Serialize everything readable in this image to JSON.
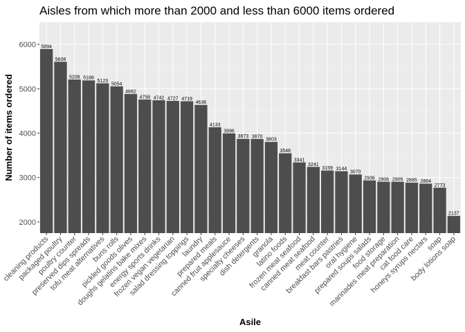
{
  "chart_data": {
    "type": "bar",
    "title": "Aisles from which more than 2000 and less than 6000 items ordered",
    "xlabel": "Asile",
    "ylabel": "Number of items ordered",
    "ylim": [
      1750,
      6500
    ],
    "yticks": [
      2000,
      3000,
      4000,
      5000,
      6000
    ],
    "grid": true,
    "bar_color": "#4d4d4d",
    "panel_color": "#ebebeb",
    "categories": [
      "cleaning products",
      "packaged poultry",
      "poultry counter",
      "preserved dips spreads",
      "tofu meat alternatives",
      "buns rolls",
      "pickled goods olives",
      "doughs gelatins bake mixes",
      "energy sports drinks",
      "frozen vegan vegetarian",
      "salad dressing toppings",
      "laundry",
      "prepared meals",
      "canned fruit applesauce",
      "specialty cheeses",
      "dish detergents",
      "granola",
      "latino foods",
      "frozen meat seafood",
      "canned meat seafood",
      "meat counter",
      "breakfast bars pastries",
      "oral hygiene",
      "prepared soups salads",
      "food storage",
      "marinades meat preparation",
      "cat food care",
      "honeys syrups nectars",
      "soap",
      "body lotions soap"
    ],
    "values": [
      5894,
      5608,
      5208,
      5188,
      5123,
      5054,
      4882,
      4758,
      4742,
      4727,
      4719,
      4636,
      4133,
      3996,
      3873,
      3870,
      3803,
      3548,
      3341,
      3241,
      3159,
      3144,
      3070,
      2936,
      2906,
      2905,
      2885,
      2864,
      2773,
      2137
    ]
  }
}
